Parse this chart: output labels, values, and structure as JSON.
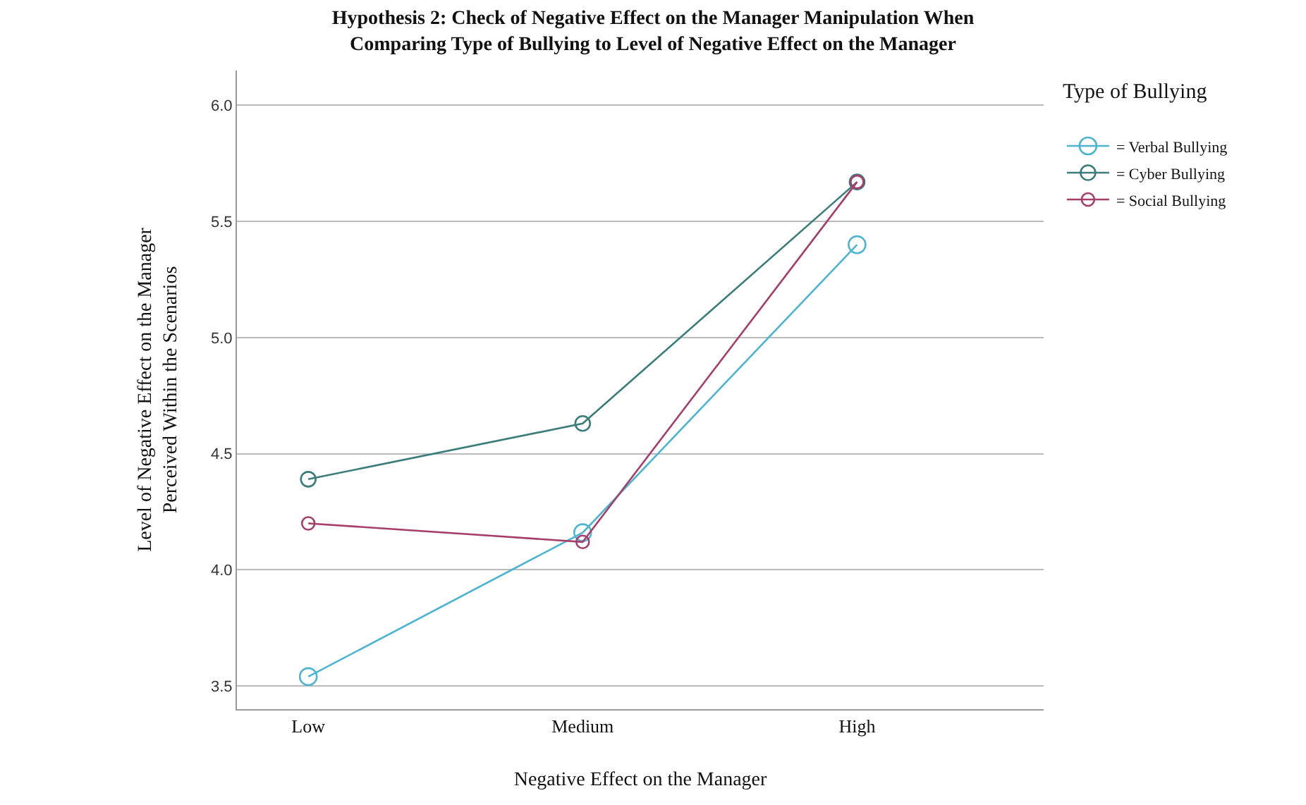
{
  "chart_data": {
    "type": "line",
    "title": "Hypothesis 2: Check of Negative Effect on the Manager Manipulation When Comparing Type of Bullying to Level of Negative Effect on the Manager",
    "xlabel": "Negative Effect on the Manager",
    "ylabel": "Level of Negative Effect on the Manager Perceived Within the Scenarios",
    "legend_title": "Type of Bullying",
    "categories": [
      "Low",
      "Medium",
      "High"
    ],
    "series": [
      {
        "name": "= Verbal Bullying",
        "color": "#4bb5d1",
        "values": [
          3.54,
          4.16,
          5.4
        ]
      },
      {
        "name": "= Cyber Bullying",
        "color": "#3b7d7a",
        "values": [
          4.39,
          4.63,
          5.67
        ]
      },
      {
        "name": "= Social Bullying",
        "color": "#a63e6c",
        "values": [
          4.2,
          4.12,
          5.67
        ]
      }
    ],
    "ylim": [
      3.4,
      6.15
    ],
    "yticks": [
      {
        "value": 3.5,
        "label": "3.5"
      },
      {
        "value": 4,
        "label": "4.0"
      },
      {
        "value": 4.5,
        "label": "4.5"
      },
      {
        "value": 5,
        "label": "5.0"
      },
      {
        "value": 5.5,
        "label": "5.5"
      },
      {
        "value": 6,
        "label": "6.0"
      }
    ],
    "grid": "y",
    "legend": "top right",
    "marker": "circle",
    "line_style": "solid"
  }
}
